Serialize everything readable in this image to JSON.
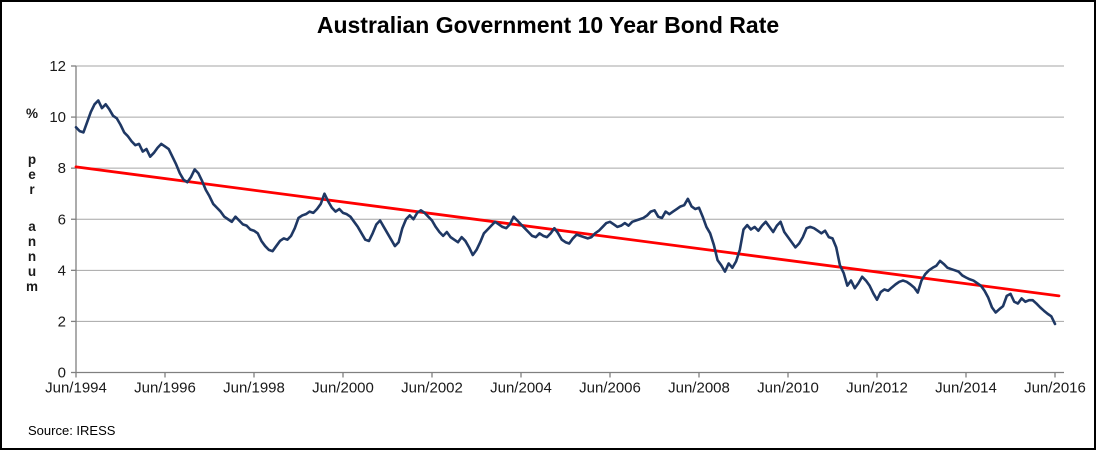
{
  "title": "Australian Government 10 Year Bond Rate",
  "source": "Source: IRESS",
  "y_axis": {
    "label": "% per annum",
    "ticks": [
      0,
      2,
      4,
      6,
      8,
      10,
      12
    ],
    "min": 0,
    "max": 12
  },
  "x_axis": {
    "ticks": [
      "Jun/1994",
      "Jun/1996",
      "Jun/1998",
      "Jun/2000",
      "Jun/2002",
      "Jun/2004",
      "Jun/2006",
      "Jun/2008",
      "Jun/2010",
      "Jun/2012",
      "Jun/2014",
      "Jun/2016"
    ]
  },
  "colors": {
    "series": "#1f3864",
    "trend": "#ff0000",
    "grid": "#a6a6a6",
    "axis": "#808080",
    "text": "#000000",
    "background": "#ffffff"
  },
  "chart_data": {
    "type": "line",
    "title": "Australian Government 10 Year Bond Rate",
    "ylabel": "% per annum",
    "ylim": [
      0,
      12
    ],
    "grid": "horizontal",
    "legend_position": "none",
    "x_start": "Jun/1994",
    "x_end": "Jun/2016",
    "frequency": "monthly",
    "x_tick_labels": [
      "Jun/1994",
      "Jun/1996",
      "Jun/1998",
      "Jun/2000",
      "Jun/2002",
      "Jun/2004",
      "Jun/2006",
      "Jun/2008",
      "Jun/2010",
      "Jun/2012",
      "Jun/2014",
      "Jun/2016"
    ],
    "series": [
      {
        "name": "Australian Government 10 Year Bond Rate",
        "color": "#1f3864",
        "values": [
          9.6,
          9.45,
          9.4,
          9.8,
          10.2,
          10.5,
          10.65,
          10.35,
          10.5,
          10.3,
          10.05,
          9.95,
          9.7,
          9.4,
          9.25,
          9.05,
          8.9,
          8.95,
          8.65,
          8.75,
          8.45,
          8.6,
          8.8,
          8.95,
          8.85,
          8.75,
          8.45,
          8.15,
          7.8,
          7.55,
          7.45,
          7.65,
          7.95,
          7.8,
          7.5,
          7.15,
          6.9,
          6.6,
          6.45,
          6.3,
          6.1,
          6.0,
          5.9,
          6.1,
          5.95,
          5.8,
          5.75,
          5.6,
          5.55,
          5.45,
          5.15,
          4.95,
          4.8,
          4.75,
          4.95,
          5.15,
          5.25,
          5.2,
          5.35,
          5.65,
          6.05,
          6.15,
          6.2,
          6.3,
          6.25,
          6.4,
          6.6,
          7.0,
          6.7,
          6.45,
          6.3,
          6.4,
          6.25,
          6.2,
          6.1,
          5.9,
          5.7,
          5.45,
          5.2,
          5.15,
          5.45,
          5.8,
          5.95,
          5.7,
          5.45,
          5.2,
          4.95,
          5.1,
          5.65,
          6.0,
          6.15,
          6.0,
          6.25,
          6.35,
          6.25,
          6.1,
          5.95,
          5.7,
          5.5,
          5.35,
          5.5,
          5.3,
          5.2,
          5.1,
          5.3,
          5.15,
          4.9,
          4.6,
          4.8,
          5.1,
          5.45,
          5.6,
          5.75,
          5.9,
          5.8,
          5.7,
          5.65,
          5.8,
          6.1,
          5.95,
          5.8,
          5.65,
          5.5,
          5.35,
          5.3,
          5.45,
          5.35,
          5.3,
          5.45,
          5.65,
          5.45,
          5.2,
          5.1,
          5.05,
          5.25,
          5.4,
          5.35,
          5.3,
          5.25,
          5.3,
          5.45,
          5.55,
          5.7,
          5.85,
          5.9,
          5.8,
          5.7,
          5.75,
          5.85,
          5.75,
          5.9,
          5.95,
          6.0,
          6.05,
          6.15,
          6.3,
          6.35,
          6.1,
          6.05,
          6.3,
          6.2,
          6.3,
          6.4,
          6.5,
          6.55,
          6.8,
          6.5,
          6.4,
          6.45,
          6.1,
          5.7,
          5.45,
          5.0,
          4.4,
          4.2,
          3.95,
          4.27,
          4.1,
          4.35,
          4.8,
          5.6,
          5.77,
          5.6,
          5.7,
          5.55,
          5.75,
          5.9,
          5.7,
          5.5,
          5.75,
          5.9,
          5.5,
          5.3,
          5.1,
          4.9,
          5.05,
          5.3,
          5.65,
          5.7,
          5.65,
          5.55,
          5.45,
          5.55,
          5.3,
          5.25,
          4.9,
          4.2,
          3.9,
          3.4,
          3.6,
          3.3,
          3.5,
          3.75,
          3.6,
          3.4,
          3.1,
          2.85,
          3.15,
          3.25,
          3.2,
          3.33,
          3.45,
          3.55,
          3.6,
          3.55,
          3.45,
          3.33,
          3.13,
          3.6,
          3.85,
          4.0,
          4.1,
          4.18,
          4.37,
          4.25,
          4.1,
          4.05,
          4.0,
          3.95,
          3.8,
          3.72,
          3.65,
          3.6,
          3.5,
          3.4,
          3.2,
          2.93,
          2.55,
          2.35,
          2.48,
          2.6,
          3.0,
          3.08,
          2.77,
          2.7,
          2.9,
          2.77,
          2.83,
          2.83,
          2.7,
          2.55,
          2.42,
          2.3,
          2.2,
          1.9
        ]
      }
    ],
    "trend_line": {
      "name": "linear trend",
      "color": "#ff0000",
      "start_value": 8.05,
      "end_value": 3.0
    }
  }
}
